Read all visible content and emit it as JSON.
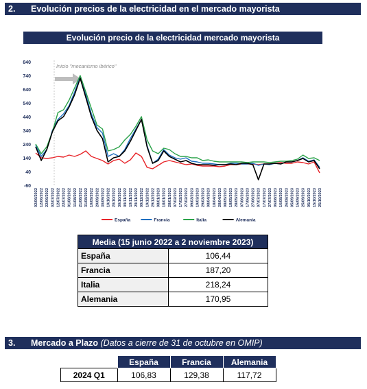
{
  "section2": {
    "number": "2.",
    "title": "Evolución precios de la electricidad en el mercado mayorista"
  },
  "chart_title": "Evolución precio de la electricidad mercado mayorista",
  "chart_data": {
    "type": "line",
    "title": "Evolución precio de la electricidad mercado mayorista",
    "annotation": "Inicio \"mecanismo ibérico\"",
    "ylim": [
      -60,
      840
    ],
    "y_ticks": [
      "840",
      "740",
      "640",
      "540",
      "440",
      "340",
      "240",
      "140",
      "40",
      "-60"
    ],
    "y_tick_values": [
      840,
      740,
      640,
      540,
      440,
      340,
      240,
      140,
      40,
      -60
    ],
    "x_tick_labels": [
      "02/06/2022",
      "12/06/2022",
      "22/06/2022",
      "02/07/2022",
      "12/07/2022",
      "22/07/2022",
      "01/08/2022",
      "11/08/2022",
      "21/08/2022",
      "31/08/2022",
      "10/09/2022",
      "20/09/2022",
      "30/09/2022",
      "10/10/2022",
      "20/10/2022",
      "30/10/2022",
      "09/11/2022",
      "19/11/2022",
      "29/11/2022",
      "09/12/2022",
      "19/12/2022",
      "29/12/2022",
      "08/01/2023",
      "18/01/2023",
      "28/01/2023",
      "07/02/2023",
      "17/02/2023",
      "27/02/2023",
      "09/03/2023",
      "19/03/2023",
      "29/03/2023",
      "08/04/2023",
      "18/04/2023",
      "28/04/2023",
      "08/05/2023",
      "18/05/2023",
      "28/05/2023",
      "07/06/2023",
      "17/06/2023",
      "27/06/2023",
      "07/07/2023",
      "17/07/2023",
      "27/07/2023",
      "06/08/2023",
      "16/08/2023",
      "26/08/2023",
      "05/09/2023",
      "15/09/2023",
      "25/09/2023",
      "05/10/2023",
      "15/10/2023",
      "25/10/2023"
    ],
    "series": [
      {
        "name": "España",
        "color": "#e8262b",
        "values": [
          175,
          140,
          135,
          140,
          150,
          145,
          160,
          150,
          165,
          190,
          150,
          135,
          120,
          95,
          120,
          130,
          100,
          125,
          175,
          150,
          70,
          60,
          85,
          110,
          120,
          110,
          100,
          90,
          95,
          85,
          80,
          80,
          80,
          75,
          80,
          90,
          90,
          95,
          95,
          95,
          90,
          95,
          95,
          100,
          105,
          100,
          100,
          110,
          105,
          95,
          110,
          30
        ]
      },
      {
        "name": "Francia",
        "color": "#1f6fc0",
        "values": [
          230,
          150,
          200,
          340,
          420,
          460,
          520,
          620,
          730,
          600,
          460,
          360,
          320,
          150,
          170,
          150,
          200,
          280,
          350,
          420,
          230,
          100,
          130,
          200,
          160,
          140,
          130,
          140,
          115,
          110,
          100,
          100,
          95,
          90,
          90,
          100,
          100,
          95,
          95,
          100,
          85,
          95,
          90,
          100,
          95,
          110,
          110,
          120,
          140,
          115,
          125,
          70
        ]
      },
      {
        "name": "Italia",
        "color": "#2ca34a",
        "values": [
          240,
          170,
          220,
          330,
          470,
          490,
          560,
          650,
          740,
          620,
          500,
          380,
          350,
          190,
          200,
          220,
          270,
          310,
          370,
          440,
          270,
          190,
          170,
          210,
          200,
          170,
          150,
          150,
          140,
          140,
          120,
          125,
          115,
          110,
          110,
          110,
          110,
          110,
          105,
          110,
          110,
          110,
          105,
          110,
          115,
          115,
          120,
          130,
          160,
          135,
          140,
          120
        ]
      },
      {
        "name": "Alemania",
        "color": "#000000",
        "values": [
          220,
          120,
          200,
          330,
          410,
          440,
          510,
          600,
          720,
          580,
          440,
          340,
          280,
          110,
          140,
          150,
          190,
          260,
          340,
          420,
          220,
          100,
          120,
          190,
          150,
          130,
          110,
          120,
          100,
          90,
          90,
          90,
          85,
          90,
          90,
          95,
          90,
          100,
          100,
          90,
          -20,
          95,
          95,
          100,
          95,
          110,
          110,
          120,
          135,
          110,
          120,
          60
        ]
      }
    ]
  },
  "media_table": {
    "header": "Media (15 junio 2022 a 2 noviembre 2023)",
    "rows": [
      {
        "label": "España",
        "value": "106,44"
      },
      {
        "label": "Francia",
        "value": "187,20"
      },
      {
        "label": "Italia",
        "value": "218,24"
      },
      {
        "label": "Alemania",
        "value": "170,95"
      }
    ]
  },
  "section3": {
    "number": "3.",
    "title": "Mercado a Plazo",
    "subtitle": "(Datos a cierre de 31 de octubre en OMIP)"
  },
  "plazo_table": {
    "columns": [
      "España",
      "Francia",
      "Alemania"
    ],
    "rows": [
      {
        "label": "2024 Q1",
        "values": [
          "106,83",
          "129,38",
          "117,72"
        ]
      }
    ]
  }
}
